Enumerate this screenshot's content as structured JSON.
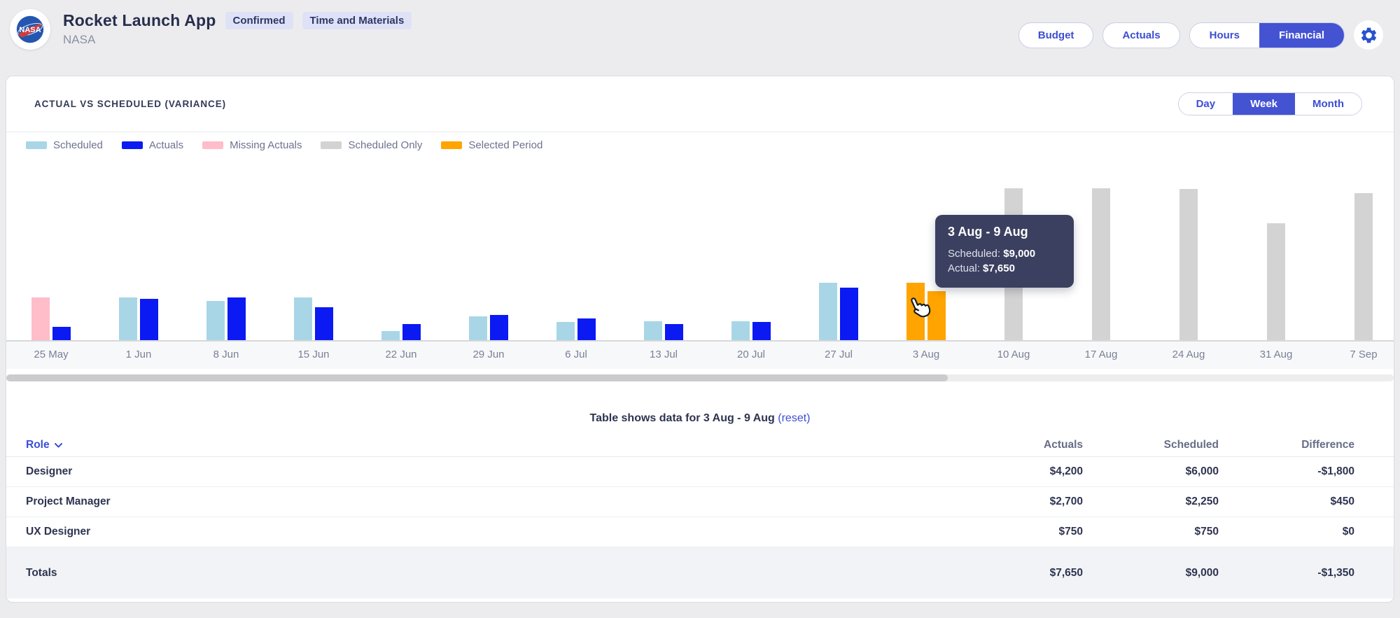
{
  "header": {
    "app_title": "Rocket Launch App",
    "org": "NASA",
    "logo": "nasa-logo",
    "badges": [
      {
        "label": "Confirmed"
      },
      {
        "label": "Time and Materials"
      }
    ],
    "nav_buttons": [
      {
        "label": "Budget",
        "active": false
      },
      {
        "label": "Actuals",
        "active": false
      }
    ],
    "view_toggle": [
      {
        "label": "Hours",
        "active": false
      },
      {
        "label": "Financial",
        "active": true
      }
    ],
    "settings_icon": "gear-icon"
  },
  "chart": {
    "title": "ACTUAL VS SCHEDULED (VARIANCE)",
    "period_toggle": [
      {
        "label": "Day",
        "active": false
      },
      {
        "label": "Week",
        "active": true
      },
      {
        "label": "Month",
        "active": false
      }
    ],
    "legend": [
      {
        "label": "Scheduled",
        "kind": "scheduled"
      },
      {
        "label": "Actuals",
        "kind": "actual"
      },
      {
        "label": "Missing Actuals",
        "kind": "missing"
      },
      {
        "label": "Scheduled Only",
        "kind": "scheduled_only"
      },
      {
        "label": "Selected Period",
        "kind": "selected"
      }
    ],
    "tooltip": {
      "title": "3 Aug - 9 Aug",
      "lines": [
        {
          "label": "Scheduled: ",
          "value": "$9,000"
        },
        {
          "label": "Actual: ",
          "value": "$7,650"
        }
      ]
    }
  },
  "chart_data": {
    "type": "bar",
    "title": "Actual vs Scheduled (Variance)",
    "x_unit": "week",
    "y_axis_visible": false,
    "legend_position": "top",
    "selected_period": "3 Aug - 9 Aug",
    "selected_values": {
      "scheduled": 9000,
      "actual": 7650
    },
    "colors": {
      "scheduled": "#a9d6e7",
      "actual": "#0b1af2",
      "missing": "#ffbcc9",
      "scheduled_only": "#d3d3d4",
      "selected": "#ffa400"
    },
    "groups": [
      {
        "label": "25 May",
        "bars": [
          {
            "kind": "missing",
            "measure": "scheduled",
            "value": 6650
          },
          {
            "kind": "actual",
            "measure": "actual",
            "value": 2050
          }
        ]
      },
      {
        "label": "1 Jun",
        "bars": [
          {
            "kind": "scheduled",
            "measure": "scheduled",
            "value": 6650
          },
          {
            "kind": "actual",
            "measure": "actual",
            "value": 6450
          }
        ]
      },
      {
        "label": "8 Jun",
        "bars": [
          {
            "kind": "scheduled",
            "measure": "scheduled",
            "value": 6150
          },
          {
            "kind": "actual",
            "measure": "actual",
            "value": 6650
          }
        ]
      },
      {
        "label": "15 Jun",
        "bars": [
          {
            "kind": "scheduled",
            "measure": "scheduled",
            "value": 6650
          },
          {
            "kind": "actual",
            "measure": "actual",
            "value": 5150
          }
        ]
      },
      {
        "label": "22 Jun",
        "bars": [
          {
            "kind": "scheduled",
            "measure": "scheduled",
            "value": 1450
          },
          {
            "kind": "actual",
            "measure": "actual",
            "value": 2500
          }
        ]
      },
      {
        "label": "29 Jun",
        "bars": [
          {
            "kind": "scheduled",
            "measure": "scheduled",
            "value": 3750
          },
          {
            "kind": "actual",
            "measure": "actual",
            "value": 3950
          }
        ]
      },
      {
        "label": "6 Jul",
        "bars": [
          {
            "kind": "scheduled",
            "measure": "scheduled",
            "value": 2800
          },
          {
            "kind": "actual",
            "measure": "actual",
            "value": 3450
          }
        ]
      },
      {
        "label": "13 Jul",
        "bars": [
          {
            "kind": "scheduled",
            "measure": "scheduled",
            "value": 2950
          },
          {
            "kind": "actual",
            "measure": "actual",
            "value": 2500
          }
        ]
      },
      {
        "label": "20 Jul",
        "bars": [
          {
            "kind": "scheduled",
            "measure": "scheduled",
            "value": 2950
          },
          {
            "kind": "actual",
            "measure": "actual",
            "value": 2800
          }
        ]
      },
      {
        "label": "27 Jul",
        "bars": [
          {
            "kind": "scheduled",
            "measure": "scheduled",
            "value": 9000
          },
          {
            "kind": "actual",
            "measure": "actual",
            "value": 8250
          }
        ]
      },
      {
        "label": "3 Aug",
        "bars": [
          {
            "kind": "selected",
            "measure": "scheduled",
            "value": 9000
          },
          {
            "kind": "selected",
            "measure": "actual",
            "value": 7650
          }
        ]
      },
      {
        "label": "10 Aug",
        "bars": [
          {
            "kind": "scheduled_only",
            "measure": "scheduled",
            "value": 23800
          }
        ]
      },
      {
        "label": "17 Aug",
        "bars": [
          {
            "kind": "scheduled_only",
            "measure": "scheduled",
            "value": 23800
          }
        ]
      },
      {
        "label": "24 Aug",
        "bars": [
          {
            "kind": "scheduled_only",
            "measure": "scheduled",
            "value": 23750
          }
        ]
      },
      {
        "label": "31 Aug",
        "bars": [
          {
            "kind": "scheduled_only",
            "measure": "scheduled",
            "value": 18350
          }
        ]
      },
      {
        "label": "7 Sep",
        "bars": [
          {
            "kind": "scheduled_only",
            "measure": "scheduled",
            "value": 23050
          }
        ]
      }
    ]
  },
  "table": {
    "caption": "Table shows data for 3 Aug - 9 Aug",
    "reset_label": "(reset)",
    "columns": [
      {
        "label": "Role",
        "sortable": true
      },
      {
        "label": "Actuals"
      },
      {
        "label": "Scheduled"
      },
      {
        "label": "Difference"
      }
    ],
    "rows": [
      {
        "role": "Designer",
        "actuals": "$4,200",
        "scheduled": "$6,000",
        "difference": "-$1,800"
      },
      {
        "role": "Project Manager",
        "actuals": "$2,700",
        "scheduled": "$2,250",
        "difference": "$450"
      },
      {
        "role": "UX Designer",
        "actuals": "$750",
        "scheduled": "$750",
        "difference": "$0"
      }
    ],
    "totals": {
      "label": "Totals",
      "actuals": "$7,650",
      "scheduled": "$9,000",
      "difference": "-$1,350"
    }
  },
  "colors": {
    "accent_blue": "#3c4ed3",
    "active_fill": "#4453d2",
    "tooltip_bg": "#3b4060",
    "badge_bg": "#dfe2f6",
    "page_bg": "#ececee",
    "totals_bg": "#f2f3f6"
  }
}
